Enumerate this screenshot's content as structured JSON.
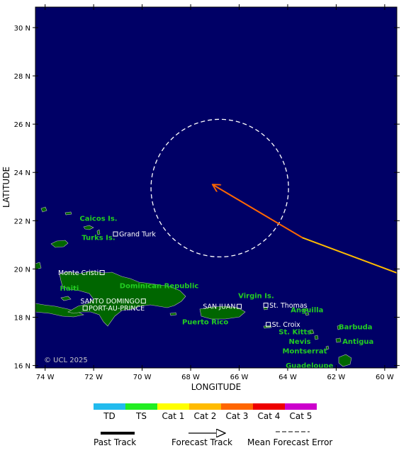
{
  "map": {
    "latitude_axis_label": "LATITUDE",
    "longitude_axis_label": "LONGITUDE",
    "lat_ticks": [
      {
        "value": 30,
        "label": "30 N"
      },
      {
        "value": 28,
        "label": "28 N"
      },
      {
        "value": 26,
        "label": "26 N"
      },
      {
        "value": 24,
        "label": "24 N"
      },
      {
        "value": 22,
        "label": "22 N"
      },
      {
        "value": 20,
        "label": "20 N"
      },
      {
        "value": 18,
        "label": "18 N"
      },
      {
        "value": 16,
        "label": "16 N"
      }
    ],
    "lon_ticks": [
      {
        "value": -74,
        "label": "74 W"
      },
      {
        "value": -72,
        "label": "72 W"
      },
      {
        "value": -70,
        "label": "70 W"
      },
      {
        "value": -68,
        "label": "68 W"
      },
      {
        "value": -66,
        "label": "66 W"
      },
      {
        "value": -64,
        "label": "64 W"
      },
      {
        "value": -62,
        "label": "62 W"
      },
      {
        "value": -60,
        "label": "60 W"
      }
    ],
    "lon_range": [
      -74.4,
      -59.5
    ],
    "lat_range": [
      15.9,
      30.85
    ],
    "ocean_color": "#000066",
    "land_color": "#006600",
    "watermark": "© UCL 2025",
    "regions": [
      {
        "name": "Caicos Is.",
        "lon": -71.8,
        "lat": 22.0
      },
      {
        "name": "Turks Is.",
        "lon": -71.8,
        "lat": 21.2
      },
      {
        "name": "Haiti",
        "lon": -73.0,
        "lat": 19.1
      },
      {
        "name": "Dominican Republic",
        "lon": -69.3,
        "lat": 19.2
      },
      {
        "name": "Puerto Rico",
        "lon": -67.4,
        "lat": 17.7
      },
      {
        "name": "Virgin Is.",
        "lon": -65.3,
        "lat": 18.8
      },
      {
        "name": "Anguilla",
        "lon": -63.2,
        "lat": 18.2
      },
      {
        "name": "St. Kitts",
        "lon": -63.7,
        "lat": 17.3
      },
      {
        "name": "Nevis",
        "lon": -63.5,
        "lat": 16.9
      },
      {
        "name": "Barbuda",
        "lon": -61.2,
        "lat": 17.5
      },
      {
        "name": "Antigua",
        "lon": -61.1,
        "lat": 16.9
      },
      {
        "name": "Montserrat",
        "lon": -63.3,
        "lat": 16.5
      },
      {
        "name": "Guadeloupe",
        "lon": -63.1,
        "lat": 15.9
      }
    ],
    "cities": [
      {
        "name": "Grand Turk",
        "lon": -71.1,
        "lat": 21.45
      },
      {
        "name": "Monte Cristi",
        "lon": -71.65,
        "lat": 19.85
      },
      {
        "name": "SANTO DOMINGO",
        "lon": -69.95,
        "lat": 18.67
      },
      {
        "name": "PORT-AU-PRINCE",
        "lon": -72.35,
        "lat": 18.38
      },
      {
        "name": "SAN JUAN",
        "lon": -66.0,
        "lat": 18.45
      },
      {
        "name": "St. Thomas",
        "lon": -64.9,
        "lat": 18.5
      },
      {
        "name": "St. Croix",
        "lon": -64.8,
        "lat": 17.7
      }
    ],
    "track": {
      "past": [
        [
          -59.4,
          19.8
        ],
        [
          -63.4,
          21.3
        ]
      ],
      "forecast": [
        [
          -63.4,
          21.3
        ],
        [
          -67.1,
          23.5
        ]
      ],
      "past_colors": [
        "#ffbb00",
        "#ff6600"
      ],
      "forecast_color": "#ff6600",
      "error_circle": {
        "lon": -66.8,
        "lat": 23.35,
        "radius_deg_lat": 2.85,
        "color": "#ffffff"
      }
    }
  },
  "legend": {
    "categories": [
      {
        "label": "TD",
        "color": "#22bbee"
      },
      {
        "label": "TS",
        "color": "#22ee22"
      },
      {
        "label": "Cat 1",
        "color": "#ffff00"
      },
      {
        "label": "Cat 2",
        "color": "#ffbb00"
      },
      {
        "label": "Cat 3",
        "color": "#ff6600"
      },
      {
        "label": "Cat 4",
        "color": "#ee0000"
      },
      {
        "label": "Cat 5",
        "color": "#cc00cc"
      }
    ],
    "line_keys": {
      "past_track": "Past Track",
      "forecast_track": "Forecast Track",
      "error": "Mean Forecast Error"
    }
  }
}
